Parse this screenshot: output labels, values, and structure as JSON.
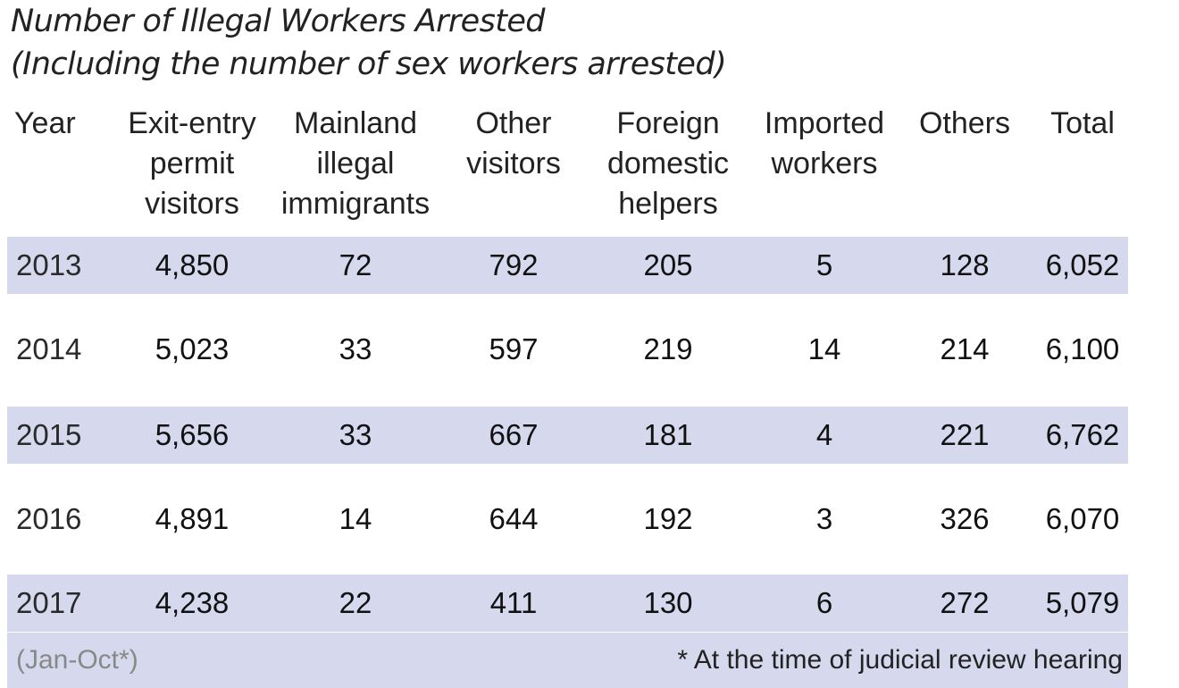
{
  "chart_data": {
    "type": "table",
    "title": "Number of Illegal Workers Arrested",
    "subtitle": "(Including the number of sex workers arrested)",
    "columns": [
      [
        "Year"
      ],
      [
        "Exit-entry",
        "permit",
        "visitors"
      ],
      [
        "Mainland",
        "illegal",
        "immigrants"
      ],
      [
        "Other",
        "visitors"
      ],
      [
        "Foreign",
        "domestic",
        "helpers"
      ],
      [
        "Imported",
        "workers"
      ],
      [
        "Others"
      ],
      [
        "Total"
      ]
    ],
    "rows": [
      [
        "2013",
        "4,850",
        "72",
        "792",
        "205",
        "5",
        "128",
        "6,052"
      ],
      [
        "2014",
        "5,023",
        "33",
        "597",
        "219",
        "14",
        "214",
        "6,100"
      ],
      [
        "2015",
        "5,656",
        "33",
        "667",
        "181",
        "4",
        "221",
        "6,762"
      ],
      [
        "2016",
        "4,891",
        "14",
        "644",
        "192",
        "3",
        "326",
        "6,070"
      ],
      [
        "2017",
        "4,238",
        "22",
        "411",
        "130",
        "6",
        "272",
        "5,079"
      ]
    ],
    "footnote_left": "(Jan-Oct*)",
    "footnote_right": "* At the time of judicial review hearing",
    "shade_color": "#d6d8ee"
  }
}
